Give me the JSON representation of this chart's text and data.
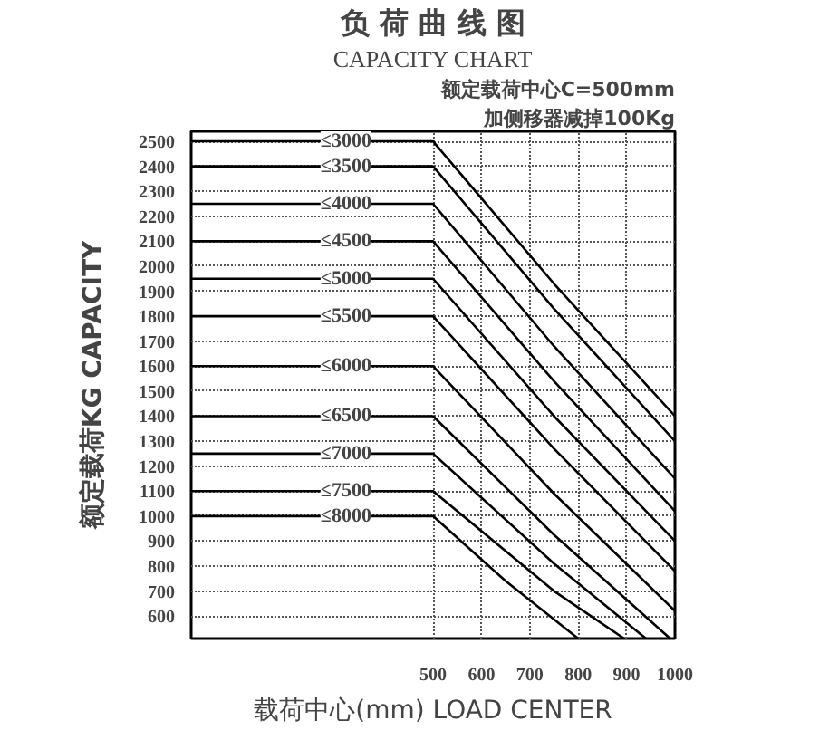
{
  "chart_data": {
    "type": "line",
    "title": "负 荷 曲 线 图",
    "subtitle": "CAPACITY CHART",
    "xlabel": "载荷中心(mm) LOAD CENTER",
    "ylabel": "额定载荷KG CAPACITY",
    "annotations": [
      "额定载荷中心C=500mm",
      "加侧移器减掉100Kg"
    ],
    "xlim": [
      0,
      1000
    ],
    "xticks": [
      500,
      600,
      700,
      800,
      900,
      1000
    ],
    "ylim": [
      510,
      2540
    ],
    "yticks": [
      600,
      700,
      800,
      900,
      1000,
      1100,
      1200,
      1300,
      1400,
      1500,
      1600,
      1700,
      1800,
      1900,
      2000,
      2100,
      2200,
      2300,
      2400,
      2500
    ],
    "grid": true,
    "legend": false,
    "marker": "none",
    "line_style": "solid",
    "series": [
      {
        "name": "≤3000",
        "color": "#000000",
        "x": [
          0,
          500,
          750,
          1000
        ],
        "values": [
          2500,
          2500,
          1930,
          1400
        ]
      },
      {
        "name": "≤3500",
        "color": "#000000",
        "x": [
          0,
          500,
          750,
          1000
        ],
        "values": [
          2400,
          2400,
          1830,
          1300
        ]
      },
      {
        "name": "≤4000",
        "color": "#000000",
        "x": [
          0,
          500,
          750,
          1000
        ],
        "values": [
          2250,
          2250,
          1680,
          1150
        ]
      },
      {
        "name": "≤4500",
        "color": "#000000",
        "x": [
          0,
          500,
          750,
          1000
        ],
        "values": [
          2100,
          2100,
          1540,
          1020
        ]
      },
      {
        "name": "≤5000",
        "color": "#000000",
        "x": [
          0,
          500,
          750,
          1000
        ],
        "values": [
          1950,
          1950,
          1400,
          900
        ]
      },
      {
        "name": "≤5500",
        "color": "#000000",
        "x": [
          0,
          500,
          750,
          1000
        ],
        "values": [
          1800,
          1800,
          1270,
          780
        ]
      },
      {
        "name": "≤6000",
        "color": "#000000",
        "x": [
          0,
          500,
          750,
          1000
        ],
        "values": [
          1600,
          1600,
          1090,
          620
        ]
      },
      {
        "name": "≤6500",
        "color": "#000000",
        "x": [
          0,
          500,
          750,
          990
        ],
        "values": [
          1400,
          1400,
          925,
          510
        ]
      },
      {
        "name": "≤7000",
        "color": "#000000",
        "x": [
          0,
          500,
          750,
          940
        ],
        "values": [
          1250,
          1250,
          810,
          510
        ]
      },
      {
        "name": "≤7500",
        "color": "#000000",
        "x": [
          0,
          500,
          750,
          895
        ],
        "values": [
          1100,
          1100,
          700,
          510
        ]
      },
      {
        "name": "≤8000",
        "color": "#000000",
        "x": [
          0,
          500,
          650,
          800
        ],
        "values": [
          1000,
          1000,
          740,
          510
        ]
      }
    ]
  }
}
